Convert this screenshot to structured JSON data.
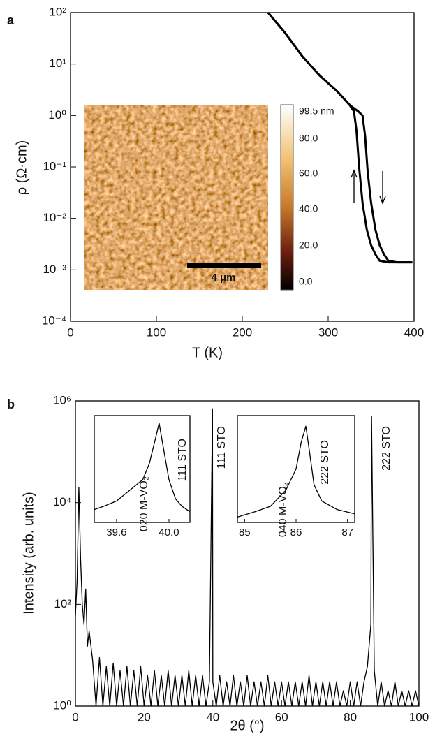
{
  "chart_data": [
    {
      "type": "line",
      "panel": "a",
      "xlabel": "T (K)",
      "ylabel": "ρ (Ω·cm)",
      "log_y": true,
      "xlim": [
        0,
        400
      ],
      "xticks": [
        0,
        100,
        200,
        300,
        400
      ],
      "ylim": [
        0.0001,
        100
      ],
      "yticks": [
        {
          "value": 0.0001,
          "label": "10⁻⁴"
        },
        {
          "value": 0.001,
          "label": "10⁻³"
        },
        {
          "value": 0.01,
          "label": "10⁻²"
        },
        {
          "value": 0.1,
          "label": "10⁻¹"
        },
        {
          "value": 1,
          "label": "10⁰"
        },
        {
          "value": 10,
          "label": "10¹"
        },
        {
          "value": 100,
          "label": "10²"
        }
      ],
      "series": [
        {
          "color": "#000000",
          "x": [
            230,
            250,
            270,
            290,
            310,
            325,
            330,
            333,
            336,
            340,
            345,
            350,
            355,
            360,
            370,
            380,
            390,
            398
          ],
          "values": [
            100,
            40,
            14,
            6,
            3,
            1.6,
            1.2,
            0.5,
            0.1,
            0.02,
            0.006,
            0.003,
            0.002,
            0.0015,
            0.0014,
            0.0014,
            0.0014,
            0.0014
          ]
        },
        {
          "color": "#000000",
          "x": [
            230,
            250,
            270,
            290,
            310,
            325,
            335,
            340,
            343,
            346,
            350,
            355,
            360,
            365,
            370,
            380,
            390,
            398
          ],
          "values": [
            100,
            40,
            14,
            6,
            3,
            1.6,
            1.2,
            1.0,
            0.4,
            0.08,
            0.02,
            0.006,
            0.003,
            0.002,
            0.0015,
            0.0014,
            0.0014,
            0.0014
          ]
        }
      ],
      "inset": {
        "scale_bar": "4 μm",
        "colorbar_labels": [
          "99.5 nm",
          "80.0",
          "60.0",
          "40.0",
          "20.0",
          "0.0"
        ]
      }
    },
    {
      "type": "line",
      "panel": "b",
      "xlabel": "2θ (°)",
      "ylabel": "Intensity (arb. units)",
      "log_y": true,
      "xlim": [
        0,
        100
      ],
      "xticks": [
        0,
        20,
        40,
        60,
        80,
        100
      ],
      "ylim": [
        1,
        1000000
      ],
      "yticks": [
        {
          "value": 1,
          "label": "10⁰"
        },
        {
          "value": 100,
          "label": "10²"
        },
        {
          "value": 10000,
          "label": "10⁴"
        },
        {
          "value": 1000000,
          "label": "10⁶"
        }
      ],
      "annotations": [
        "111 STO",
        "222 STO"
      ],
      "x": [
        0,
        0.5,
        1,
        1.5,
        2,
        2.5,
        3,
        3.5,
        4,
        5,
        6,
        7,
        8,
        9,
        10,
        11,
        12,
        13,
        14,
        15,
        16,
        17,
        18,
        19,
        20,
        21,
        22,
        23,
        24,
        25,
        26,
        27,
        28,
        29,
        30,
        31,
        32,
        33,
        34,
        35,
        36,
        37,
        38,
        39,
        39.9,
        40,
        41,
        42,
        43,
        44,
        45,
        46,
        47,
        48,
        49,
        50,
        51,
        52,
        53,
        54,
        55,
        56,
        57,
        58,
        59,
        60,
        61,
        62,
        63,
        64,
        65,
        66,
        67,
        68,
        69,
        70,
        71,
        72,
        73,
        74,
        75,
        76,
        77,
        78,
        79,
        80,
        81,
        82,
        83,
        84,
        85,
        86,
        86.2,
        87,
        88,
        89,
        90,
        91,
        92,
        93,
        94,
        95,
        96,
        97,
        98,
        99,
        100
      ],
      "series": [
        {
          "color": "#000000",
          "values": [
            60,
            300,
            20000,
            800,
            100,
            40,
            200,
            15,
            30,
            8,
            1,
            9,
            1,
            6,
            1,
            7,
            1,
            5,
            1,
            6,
            1,
            5,
            1,
            6,
            1,
            4,
            1,
            5,
            1,
            4,
            1,
            5,
            1,
            4,
            1,
            4,
            1,
            5,
            1,
            4,
            1,
            4,
            1,
            3,
            700000,
            3,
            1,
            4,
            1,
            3,
            1,
            4,
            1,
            3,
            1,
            4,
            1,
            3,
            1,
            3,
            1,
            4,
            1,
            3,
            1,
            3,
            1,
            3,
            1,
            3,
            1,
            3,
            1,
            4,
            1,
            3,
            1,
            3,
            1,
            3,
            1,
            3,
            1,
            2,
            1,
            3,
            1,
            3,
            1,
            3,
            6,
            40,
            500000,
            5,
            1,
            3,
            1,
            2,
            1,
            3,
            1,
            2,
            1,
            2,
            1,
            2,
            1
          ]
        }
      ]
    },
    {
      "type": "line",
      "xlim": [
        39.43,
        40.16
      ],
      "xticks": [
        39.6,
        {
          "value": 40,
          "label": "40.0"
        }
      ],
      "ylim": [
        0,
        1
      ],
      "annotations": [
        "020 M-VO₂",
        "111 STO"
      ],
      "x": [
        39.43,
        39.5,
        39.6,
        39.7,
        39.8,
        39.85,
        39.9,
        39.925,
        39.95,
        40.0,
        40.05,
        40.1,
        40.16
      ],
      "series": [
        {
          "color": "#000000",
          "values": [
            0.12,
            0.15,
            0.2,
            0.3,
            0.4,
            0.55,
            0.8,
            0.93,
            0.75,
            0.4,
            0.22,
            0.15,
            0.1
          ]
        }
      ]
    },
    {
      "type": "line",
      "xlim": [
        84.86,
        87.14
      ],
      "xticks": [
        85,
        86,
        87
      ],
      "ylim": [
        0,
        1
      ],
      "annotations": [
        "040 M-VO₂",
        "222 STO"
      ],
      "x": [
        84.86,
        85.2,
        85.5,
        85.8,
        86.0,
        86.1,
        86.19,
        86.25,
        86.35,
        86.5,
        86.8,
        87.14
      ],
      "series": [
        {
          "color": "#000000",
          "values": [
            0.05,
            0.1,
            0.15,
            0.3,
            0.5,
            0.75,
            0.9,
            0.7,
            0.35,
            0.2,
            0.12,
            0.08
          ]
        }
      ]
    }
  ]
}
